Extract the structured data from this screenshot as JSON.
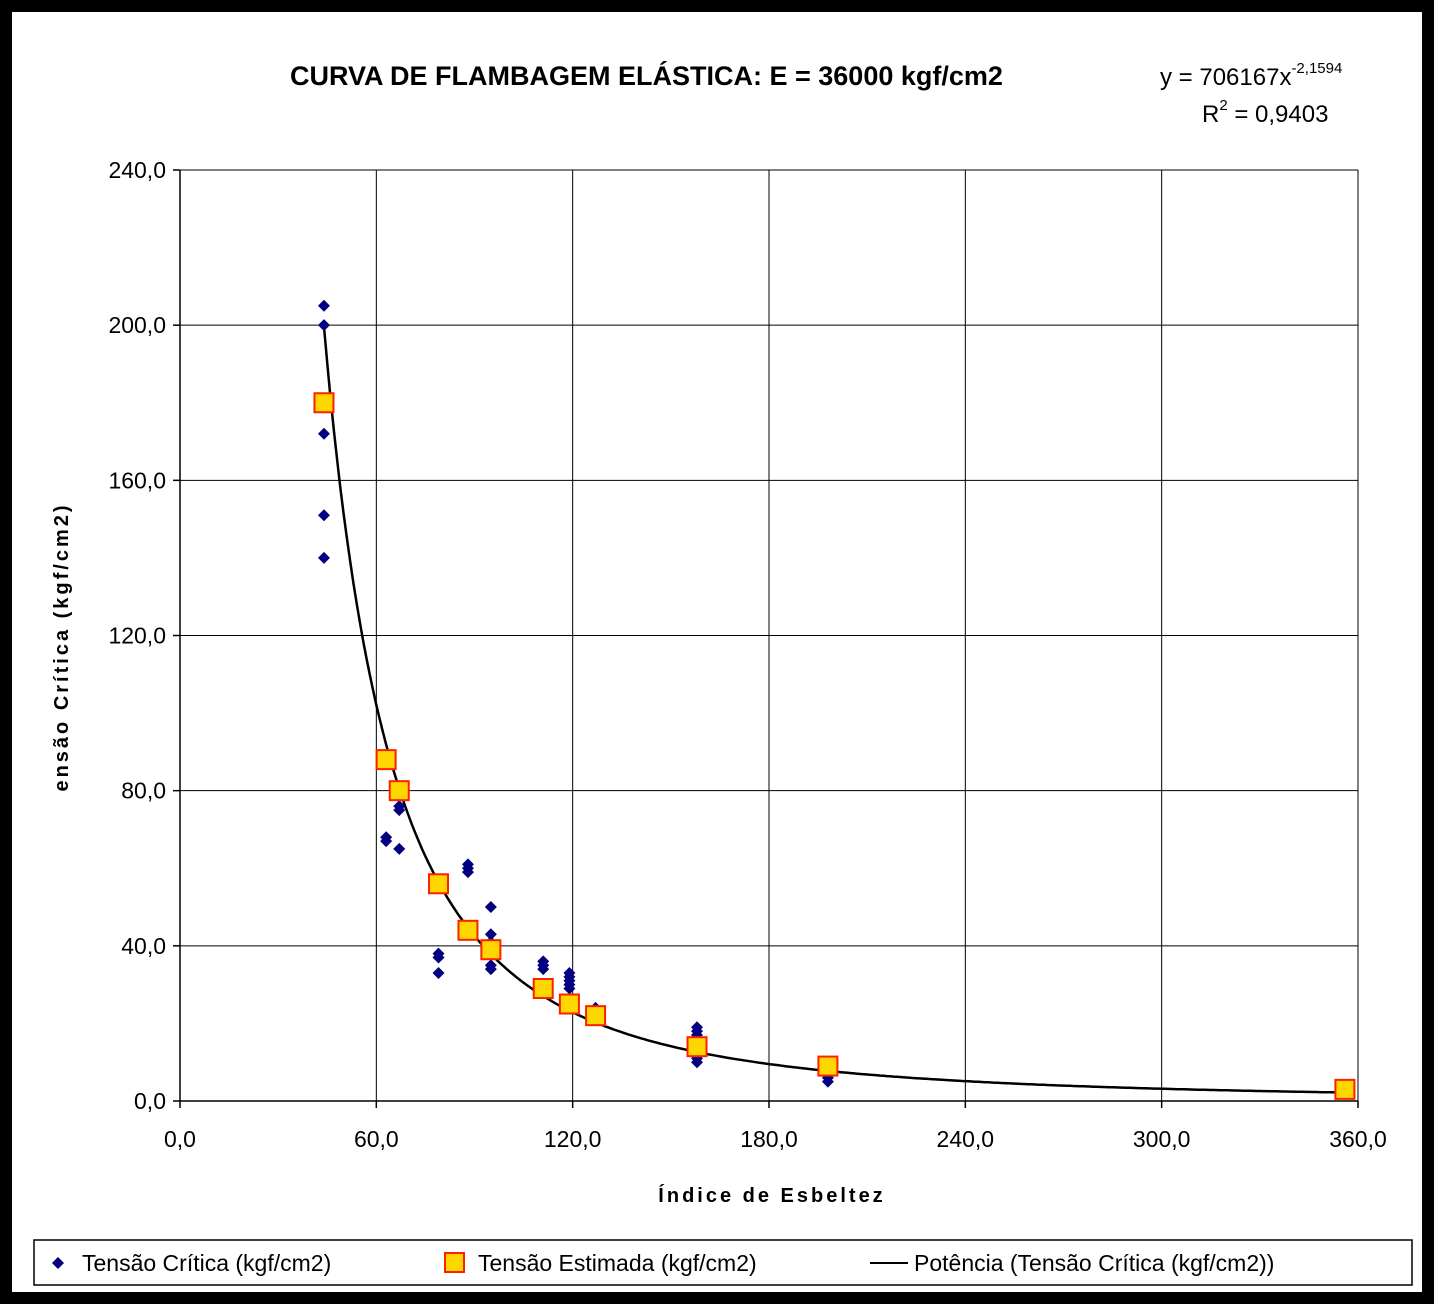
{
  "chart_data": {
    "type": "scatter",
    "title": "CURVA DE FLAMBAGEM ELÁSTICA: E = 36000 kgf/cm2",
    "trendline_equation": {
      "base": "y = 706167x",
      "exponent": "-2,1594",
      "r2_label": "R",
      "r2_sup": "2",
      "r2_value": " = 0,9403"
    },
    "xlabel": "Índice de Esbeltez",
    "ylabel": "ensão Crítica (kgf/cm2)",
    "xlim": [
      0,
      360
    ],
    "ylim": [
      0,
      240
    ],
    "x_ticks": [
      "0,0",
      "60,0",
      "120,0",
      "180,0",
      "240,0",
      "300,0",
      "360,0"
    ],
    "y_ticks": [
      "0,0",
      "40,0",
      "80,0",
      "120,0",
      "160,0",
      "200,0",
      "240,0"
    ],
    "grid": true,
    "legend_position": "bottom",
    "colors": {
      "series_critica": "#000080",
      "series_estimada_fill": "#FFD700",
      "series_estimada_edge": "#FF2000",
      "trendline": "#000000"
    },
    "series": [
      {
        "name": "Tensão Crítica (kgf/cm2)",
        "marker": "diamond",
        "points": [
          [
            44,
            205
          ],
          [
            44,
            200
          ],
          [
            44,
            172
          ],
          [
            44,
            151
          ],
          [
            44,
            140
          ],
          [
            63,
            68
          ],
          [
            63,
            67
          ],
          [
            67,
            76
          ],
          [
            67,
            75
          ],
          [
            67,
            65
          ],
          [
            79,
            38
          ],
          [
            79,
            37
          ],
          [
            79,
            33
          ],
          [
            88,
            61
          ],
          [
            88,
            60
          ],
          [
            88,
            59
          ],
          [
            95,
            50
          ],
          [
            95,
            43
          ],
          [
            95,
            41
          ],
          [
            95,
            35
          ],
          [
            95,
            34
          ],
          [
            111,
            36
          ],
          [
            111,
            35
          ],
          [
            111,
            34
          ],
          [
            119,
            33
          ],
          [
            119,
            32
          ],
          [
            119,
            31
          ],
          [
            119,
            30
          ],
          [
            119,
            29
          ],
          [
            127,
            24
          ],
          [
            127,
            23
          ],
          [
            158,
            19
          ],
          [
            158,
            18
          ],
          [
            158,
            17
          ],
          [
            158,
            11
          ],
          [
            158,
            10
          ],
          [
            198,
            6
          ],
          [
            198,
            5
          ]
        ]
      },
      {
        "name": "Tensão Estimada (kgf/cm2)",
        "marker": "square",
        "points": [
          [
            44,
            180
          ],
          [
            63,
            88
          ],
          [
            67,
            80
          ],
          [
            79,
            56
          ],
          [
            88,
            44
          ],
          [
            95,
            39
          ],
          [
            111,
            29
          ],
          [
            119,
            25
          ],
          [
            127,
            22
          ],
          [
            158,
            14
          ],
          [
            198,
            9
          ],
          [
            356,
            3
          ]
        ]
      },
      {
        "name": "Potência (Tensão Crítica (kgf/cm2))",
        "marker": "line",
        "equation": {
          "a": 706167,
          "b": -2.1594
        },
        "x_range": [
          44,
          356
        ]
      }
    ]
  }
}
